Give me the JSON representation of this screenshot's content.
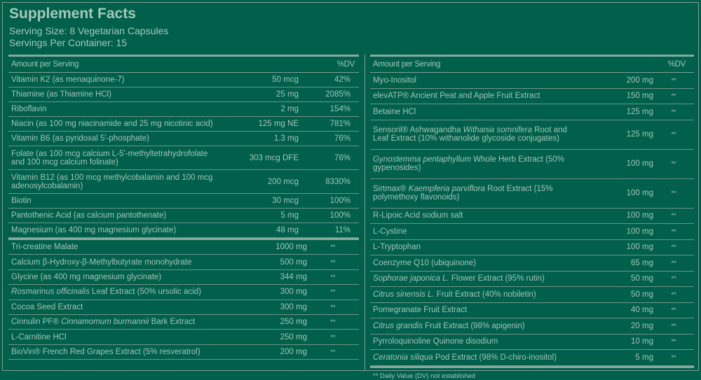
{
  "colors": {
    "background": "#00604c",
    "text": "#a3c3b6",
    "rule": "#7fa093"
  },
  "title": "Supplement Facts",
  "serving_size": "Serving Size: 8 Vegetarian Capsules",
  "servings_per_container": "Servings Per Container: 15",
  "header": {
    "amount": "Amount per Serving",
    "dv": "%DV"
  },
  "left": {
    "group1": [
      {
        "name": [
          [
            "Vitamin K2 (as menaquinone-7)",
            0
          ]
        ],
        "amount": "50 mcg",
        "dv": "42%"
      },
      {
        "name": [
          [
            "Thiamine (as Thiamine HCl)",
            0
          ]
        ],
        "amount": "25 mg",
        "dv": "2085%"
      },
      {
        "name": [
          [
            "Riboflavin",
            0
          ]
        ],
        "amount": "2 mg",
        "dv": "154%"
      },
      {
        "name": [
          [
            "Niacin (as 100 mg niacinamide and 25 mg nicotinic acid)",
            0
          ]
        ],
        "amount": "125 mg NE",
        "dv": "781%"
      },
      {
        "name": [
          [
            "Vitamin B6 (as pyridoxal 5'-phosphate)",
            0
          ]
        ],
        "amount": "1.3 mg",
        "dv": "76%"
      },
      {
        "name": [
          [
            "Folate (as 100 mcg calcium L-5'-methyltetrahydrofolate and 100 mcg calcium folinate)",
            0
          ]
        ],
        "amount": "303 mcg DFE",
        "dv": "76%",
        "tall": 1
      },
      {
        "name": [
          [
            "Vitamin B12 (as 100 mcg methylcobalamin and 100 mcg adenosylcobalamin)",
            0
          ]
        ],
        "amount": "200 mcg",
        "dv": "8330%",
        "tall": 1
      },
      {
        "name": [
          [
            "Biotin",
            0
          ]
        ],
        "amount": "30 mcg",
        "dv": "100%"
      },
      {
        "name": [
          [
            "Pantothenic Acid (as calcium pantothenate)",
            0
          ]
        ],
        "amount": "5 mg",
        "dv": "100%"
      },
      {
        "name": [
          [
            "Magnesium (as 400 mg magnesium glycinate)",
            0
          ]
        ],
        "amount": "48 mg",
        "dv": "11%"
      }
    ],
    "group2": [
      {
        "name": [
          [
            "Tri-creatine Malate",
            0
          ]
        ],
        "amount": "1000 mg",
        "dv": "**"
      },
      {
        "name": [
          [
            "Calcium β-Hydroxy-β-Methylbutyrate monohydrate",
            0
          ]
        ],
        "amount": "500 mg",
        "dv": "**"
      },
      {
        "name": [
          [
            "Glycine (as 400 mg magnesium glycinate)",
            0
          ]
        ],
        "amount": "344 mg",
        "dv": "**"
      },
      {
        "name": [
          [
            "Rosmarinus officinalis",
            1
          ],
          [
            " Leaf Extract (50% ursolic acid)",
            0
          ]
        ],
        "amount": "300 mg",
        "dv": "**"
      },
      {
        "name": [
          [
            "Cocoa Seed Extract",
            0
          ]
        ],
        "amount": "300 mg",
        "dv": "**"
      },
      {
        "name": [
          [
            "Cinnulin PF® ",
            0
          ],
          [
            "Cinnamomum burmannii",
            1
          ],
          [
            " Bark Extract",
            0
          ]
        ],
        "amount": "250 mg",
        "dv": "**"
      },
      {
        "name": [
          [
            "L-Carnitine HCl",
            0
          ]
        ],
        "amount": "250 mg",
        "dv": "**"
      },
      {
        "name": [
          [
            "BioVin® French Red Grapes Extract (5% resveratrol)",
            0
          ]
        ],
        "amount": "200 mg",
        "dv": "**"
      }
    ]
  },
  "right": {
    "rows": [
      {
        "name": [
          [
            "Myo-Inositol",
            0
          ]
        ],
        "amount": "200 mg",
        "dv": "**"
      },
      {
        "name": [
          [
            "elevATP® Ancient Peat and Apple Fruit Extract",
            0
          ]
        ],
        "amount": "150 mg",
        "dv": "**"
      },
      {
        "name": [
          [
            "Betaine HCl",
            0
          ]
        ],
        "amount": "125 mg",
        "dv": "**"
      },
      {
        "name": [
          [
            "Sensoril® Ashwagandha ",
            0
          ],
          [
            "Withania somnifera",
            1
          ],
          [
            " Root and Leaf Extract (10% withanolide glycoside conjugates)",
            0
          ]
        ],
        "amount": "125 mg",
        "dv": "**",
        "tall": 1
      },
      {
        "name": [
          [
            "Gynostemma pentaphyllum",
            1
          ],
          [
            " Whole Herb Extract (50% gypenosides)",
            0
          ]
        ],
        "amount": "100 mg",
        "dv": "**",
        "tall": 1
      },
      {
        "name": [
          [
            "Sirtmax® ",
            0
          ],
          [
            "Kaempferia parviflora",
            1
          ],
          [
            " Root Extract (15% polymethoxy flavonoids)",
            0
          ]
        ],
        "amount": "100 mg",
        "dv": "**",
        "tall": 1
      },
      {
        "name": [
          [
            "R-Lipoic Acid sodium salt",
            0
          ]
        ],
        "amount": "100 mg",
        "dv": "**"
      },
      {
        "name": [
          [
            "L-Cystine",
            0
          ]
        ],
        "amount": "100 mg",
        "dv": "**"
      },
      {
        "name": [
          [
            "L-Tryptophan",
            0
          ]
        ],
        "amount": "100 mg",
        "dv": "**"
      },
      {
        "name": [
          [
            "Coenzyme Q10 (ubiquinone)",
            0
          ]
        ],
        "amount": "65 mg",
        "dv": "**"
      },
      {
        "name": [
          [
            "Sophorae japonica L.",
            1
          ],
          [
            " Flower Extract (95% rutin)",
            0
          ]
        ],
        "amount": "50 mg",
        "dv": "**"
      },
      {
        "name": [
          [
            "Citrus sinensis L.",
            1
          ],
          [
            " Fruit Extract (40% nobiletin)",
            0
          ]
        ],
        "amount": "50 mg",
        "dv": "**"
      },
      {
        "name": [
          [
            "Pomegranate Fruit Extract",
            0
          ]
        ],
        "amount": "40 mg",
        "dv": "**"
      },
      {
        "name": [
          [
            "Citrus grandis",
            1
          ],
          [
            " Fruit Extract (98% apigenin)",
            0
          ]
        ],
        "amount": "20 mg",
        "dv": "**"
      },
      {
        "name": [
          [
            "Pyrroloquinoline Quinone disodium",
            0
          ]
        ],
        "amount": "10 mg",
        "dv": "**"
      },
      {
        "name": [
          [
            "Ceratonia siliqua",
            1
          ],
          [
            " Pod Extract (98% D-chiro-inositol)",
            0
          ]
        ],
        "amount": "5 mg",
        "dv": "**"
      }
    ],
    "footnote": "** Daily Value (DV) not established"
  }
}
